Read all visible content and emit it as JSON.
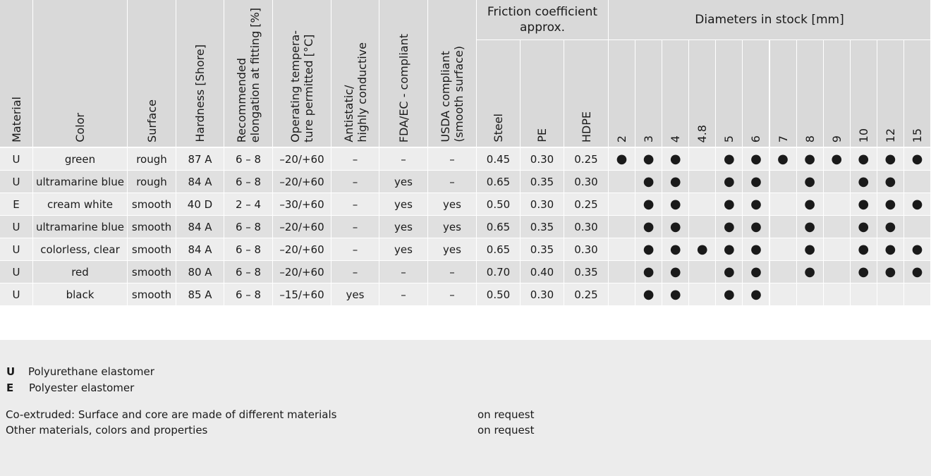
{
  "table": {
    "headers": [
      [
        "Material"
      ],
      [
        "Color"
      ],
      [
        "Surface"
      ],
      [
        "Hardness [Shore]"
      ],
      [
        "Recommended",
        "elongation at fitting [%]"
      ],
      [
        "Operating tempera-",
        "ture permitted [°C]"
      ],
      [
        "Antistatic/",
        "highly conductive"
      ],
      [
        "FDA/EC - compliant"
      ],
      [
        "USDA compliant",
        "(smooth surface)"
      ]
    ],
    "friction": {
      "title": "Friction coefficient approx.",
      "columns": [
        "Steel",
        "PE",
        "HDPE"
      ]
    },
    "diameters": {
      "title": "Diameters in stock [mm]",
      "columns": [
        "2",
        "3",
        "4",
        "4.8",
        "5",
        "6",
        "7",
        "8",
        "9",
        "10",
        "12",
        "15"
      ]
    },
    "rows": [
      {
        "cells": [
          "U",
          "green",
          "rough",
          "87 A",
          "6 – 8",
          "–20/+60",
          "–",
          "–",
          "–"
        ],
        "friction": [
          "0.45",
          "0.30",
          "0.25"
        ],
        "stock": [
          "●",
          "●",
          "●",
          null,
          "●",
          "●",
          "●",
          "●",
          "●",
          "●",
          "●",
          "●"
        ]
      },
      {
        "cells": [
          "U",
          "ultramarine blue",
          "rough",
          "84 A",
          "6 – 8",
          "–20/+60",
          "–",
          "yes",
          "–"
        ],
        "friction": [
          "0.65",
          "0.35",
          "0.30"
        ],
        "stock": [
          null,
          "●",
          "●",
          null,
          "●",
          "●",
          null,
          "●",
          null,
          "●",
          "●",
          null
        ]
      },
      {
        "cells": [
          "E",
          "cream white",
          "smooth",
          "40 D",
          "2 – 4",
          "–30/+60",
          "–",
          "yes",
          "yes"
        ],
        "friction": [
          "0.50",
          "0.30",
          "0.25"
        ],
        "stock": [
          null,
          "●",
          "●",
          null,
          "●",
          "●",
          null,
          "●",
          null,
          "●",
          "●",
          "●"
        ]
      },
      {
        "cells": [
          "U",
          "ultramarine blue",
          "smooth",
          "84 A",
          "6 – 8",
          "–20/+60",
          "–",
          "yes",
          "yes"
        ],
        "friction": [
          "0.65",
          "0.35",
          "0.30"
        ],
        "stock": [
          null,
          "●",
          "●",
          null,
          "●",
          "●",
          null,
          "●",
          null,
          "●",
          "●",
          null
        ]
      },
      {
        "cells": [
          "U",
          "colorless, clear",
          "smooth",
          "84 A",
          "6 – 8",
          "–20/+60",
          "–",
          "yes",
          "yes"
        ],
        "friction": [
          "0.65",
          "0.35",
          "0.30"
        ],
        "stock": [
          null,
          "●",
          "●",
          "●",
          "●",
          "●",
          null,
          "●",
          null,
          "●",
          "●",
          "●"
        ]
      },
      {
        "cells": [
          "U",
          "red",
          "smooth",
          "80 A",
          "6 – 8",
          "–20/+60",
          "–",
          "–",
          "–"
        ],
        "friction": [
          "0.70",
          "0.40",
          "0.35"
        ],
        "stock": [
          null,
          "●",
          "●",
          null,
          "●",
          "●",
          null,
          "●",
          null,
          "●",
          "●",
          "●"
        ]
      },
      {
        "cells": [
          "U",
          "black",
          "smooth",
          "85 A",
          "6 – 8",
          "–15/+60",
          "yes",
          "–",
          "–"
        ],
        "friction": [
          "0.50",
          "0.30",
          "0.25"
        ],
        "stock": [
          null,
          "●",
          "●",
          null,
          "●",
          "●",
          null,
          null,
          null,
          null,
          null,
          null
        ]
      }
    ]
  },
  "legend": [
    {
      "code": "U",
      "text": "Polyurethane elastomer"
    },
    {
      "code": "E",
      "text": "Polyester elastomer"
    }
  ],
  "notes": [
    {
      "text": "Co-extruded: Surface and core are made of different materials",
      "value": "on request"
    },
    {
      "text": "Other materials, colors and properties",
      "value": "on request"
    }
  ]
}
